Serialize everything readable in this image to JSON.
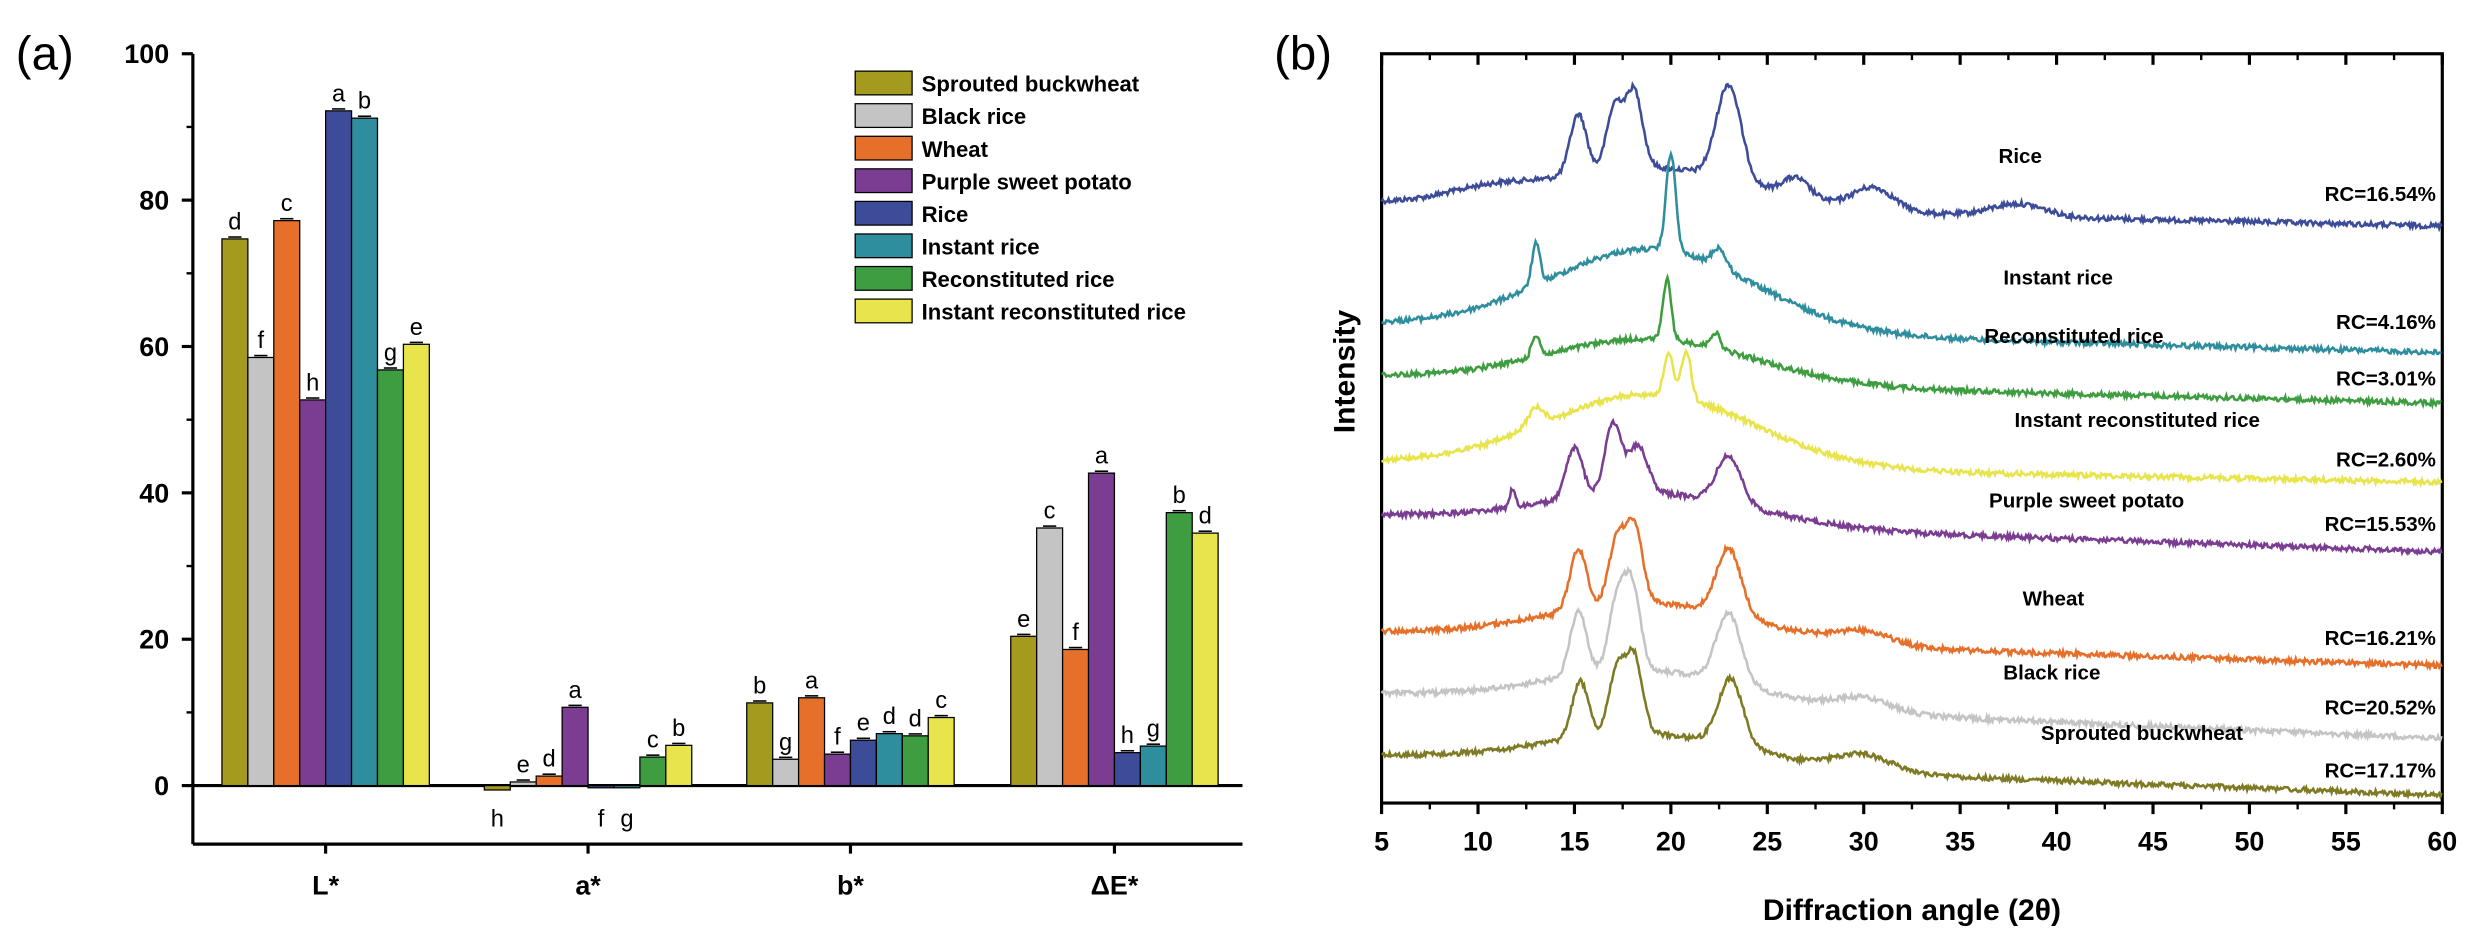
{
  "panels": {
    "a_label": "(a)",
    "b_label": "(b)"
  },
  "chart_data": [
    {
      "type": "bar",
      "panel": "a",
      "xlabel": "",
      "ylabel": "",
      "ylim": [
        -8,
        100
      ],
      "yticks": [
        0,
        20,
        40,
        60,
        80,
        100
      ],
      "categories": [
        "L*",
        "a*",
        "b*",
        "ΔE*"
      ],
      "legend_position": "top-right",
      "series": [
        {
          "name": "Sprouted buckwheat",
          "color": "#a49a1d",
          "values": [
            74.7,
            -0.6,
            11.3,
            20.4
          ],
          "letters": [
            "d",
            "h",
            "b",
            "e"
          ]
        },
        {
          "name": "Black rice",
          "color": "#c4c4c4",
          "values": [
            58.5,
            0.5,
            3.6,
            35.2
          ],
          "letters": [
            "f",
            "e",
            "g",
            "c"
          ]
        },
        {
          "name": "Wheat",
          "color": "#e6702a",
          "values": [
            77.2,
            1.3,
            12.0,
            18.6
          ],
          "letters": [
            "c",
            "d",
            "a",
            "f"
          ]
        },
        {
          "name": "Purple sweet potato",
          "color": "#7a3d92",
          "values": [
            52.7,
            10.7,
            4.3,
            42.7
          ],
          "letters": [
            "h",
            "a",
            "f",
            "a"
          ]
        },
        {
          "name": "Rice",
          "color": "#3c4c99",
          "values": [
            92.2,
            -0.3,
            6.2,
            4.5
          ],
          "letters": [
            "a",
            "f",
            "e",
            "h"
          ]
        },
        {
          "name": "Instant rice",
          "color": "#2f8e9e",
          "values": [
            91.2,
            -0.3,
            7.1,
            5.4
          ],
          "letters": [
            "b",
            "g",
            "d",
            "g"
          ]
        },
        {
          "name": "Reconstituted rice",
          "color": "#3e9d41",
          "values": [
            56.8,
            3.9,
            6.8,
            37.3
          ],
          "letters": [
            "g",
            "c",
            "d",
            "b"
          ]
        },
        {
          "name": "Instant reconstituted rice",
          "color": "#e8e44c",
          "values": [
            60.3,
            5.5,
            9.3,
            34.5
          ],
          "letters": [
            "e",
            "b",
            "c",
            "d"
          ]
        }
      ]
    },
    {
      "type": "line",
      "panel": "b",
      "xlabel": "Diffraction angle (2θ)",
      "ylabel": "Intensity",
      "xlim": [
        5,
        60
      ],
      "xticks": [
        5,
        10,
        15,
        20,
        25,
        30,
        35,
        40,
        45,
        50,
        55,
        60
      ],
      "series": [
        {
          "name": "Rice",
          "rc": "RC=16.54%",
          "color": "#3c4c99",
          "baseline_start": 128,
          "baseline_end": 143,
          "peaks": [
            [
              10.5,
              6,
              3.0
            ],
            [
              15.2,
              38,
              0.6
            ],
            [
              17.1,
              40,
              0.6
            ],
            [
              18.1,
              48,
              0.6
            ],
            [
              23.0,
              60,
              0.9
            ],
            [
              26.5,
              12,
              1.0
            ],
            [
              30.5,
              14,
              1.5
            ],
            [
              38.0,
              8,
              2.0
            ]
          ],
          "amorph": 26
        },
        {
          "name": "Instant rice",
          "rc": "RC=4.16%",
          "color": "#2f8e9e",
          "baseline_start": 205,
          "baseline_end": 223,
          "peaks": [
            [
              13.0,
              26,
              0.3
            ],
            [
              20.0,
              62,
              0.35
            ],
            [
              22.5,
              12,
              0.5
            ]
          ],
          "amorph": 52
        },
        {
          "name": "Reconstituted rice",
          "rc": "RC=3.01%",
          "color": "#3e9d41",
          "baseline_start": 238,
          "baseline_end": 255,
          "peaks": [
            [
              13.0,
              14,
              0.3
            ],
            [
              19.8,
              38,
              0.3
            ],
            [
              22.3,
              10,
              0.35
            ]
          ],
          "amorph": 28
        },
        {
          "name": "Instant reconstituted rice",
          "rc": "RC=2.60%",
          "color": "#e8e44c",
          "baseline_start": 292,
          "baseline_end": 305,
          "peaks": [
            [
              13.0,
              12,
              0.6
            ],
            [
              19.9,
              26,
              0.35
            ],
            [
              20.8,
              30,
              0.35
            ]
          ],
          "amorph": 46
        },
        {
          "name": "Purple sweet potato",
          "rc": "RC=15.53%",
          "color": "#7a3d92",
          "baseline_start": 326,
          "baseline_end": 349,
          "peaks": [
            [
              11.8,
              12,
              0.2
            ],
            [
              15.0,
              32,
              0.6
            ],
            [
              17.0,
              44,
              0.6
            ],
            [
              18.3,
              30,
              0.7
            ],
            [
              23.0,
              30,
              0.9
            ]
          ],
          "amorph": 20
        },
        {
          "name": "Wheat",
          "rc": "RC=16.21%",
          "color": "#e6702a",
          "baseline_start": 400,
          "baseline_end": 421,
          "peaks": [
            [
              15.2,
              38,
              0.6
            ],
            [
              17.2,
              40,
              0.6
            ],
            [
              18.1,
              48,
              0.6
            ],
            [
              23.0,
              42,
              0.9
            ],
            [
              30.0,
              8,
              2.0
            ]
          ],
          "amorph": 24
        },
        {
          "name": "Black rice",
          "rc": "RC=20.52%",
          "color": "#c4c4c4",
          "baseline_start": 439,
          "baseline_end": 467,
          "peaks": [
            [
              15.2,
              40,
              0.6
            ],
            [
              17.2,
              44,
              0.6
            ],
            [
              18.0,
              52,
              0.6
            ],
            [
              23.0,
              44,
              0.9
            ],
            [
              30.0,
              8,
              2.0
            ]
          ],
          "amorph": 22
        },
        {
          "name": "Sprouted buckwheat",
          "rc": "RC=17.17%",
          "color": "#7f7a24",
          "baseline_start": 478,
          "baseline_end": 503,
          "peaks": [
            [
              15.3,
              36,
              0.6
            ],
            [
              17.2,
              40,
              0.6
            ],
            [
              18.1,
              48,
              0.6
            ],
            [
              23.1,
              42,
              0.9
            ],
            [
              30.0,
              10,
              2.0
            ]
          ],
          "amorph": 20
        }
      ]
    }
  ]
}
